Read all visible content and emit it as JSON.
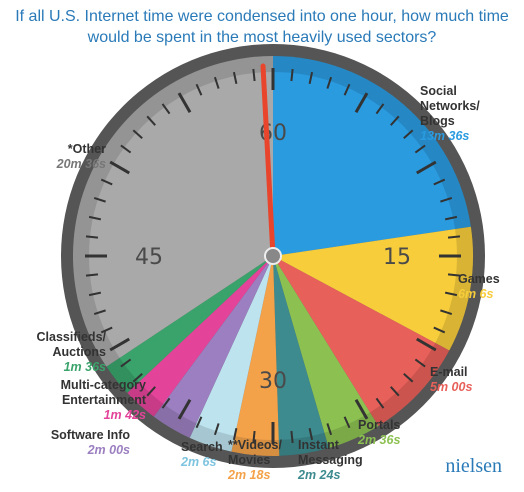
{
  "chart_data": {
    "type": "pie",
    "title": "If all U.S. Internet time were condensed into one hour, how much time would be spent in the most heavily used sectors?",
    "categories": [
      "Social Networks/ Blogs",
      "Games",
      "E-mail",
      "Portals",
      "Instant Messaging",
      "**Videos/ Movies",
      "Search",
      "Software Info",
      "Multi-category Entertainment",
      "Classifieds/ Auctions",
      "*Other"
    ],
    "values": [
      13.6,
      6.1,
      5,
      2.6,
      2.4,
      2.3,
      2.1,
      2,
      1.7,
      1.6,
      20.6
    ],
    "value_labels": [
      "13m 36s",
      "6m 6s",
      "5m 00s",
      "2m 36s",
      "2m 24s",
      "2m 18s",
      "2m 6s",
      "2m 00s",
      "1m 42s",
      "1m 36s",
      "20m 36s"
    ],
    "colors": [
      "#2b9be0",
      "#f7cd3c",
      "#e8605a",
      "#8cc152",
      "#3d8a8f",
      "#f4a24a",
      "#bde3ef",
      "#9b7fc0",
      "#e3449a",
      "#3aa36b",
      "#a9a9a9"
    ],
    "dial_ticks": [
      60,
      15,
      30,
      45
    ],
    "brand": "nielsen"
  }
}
